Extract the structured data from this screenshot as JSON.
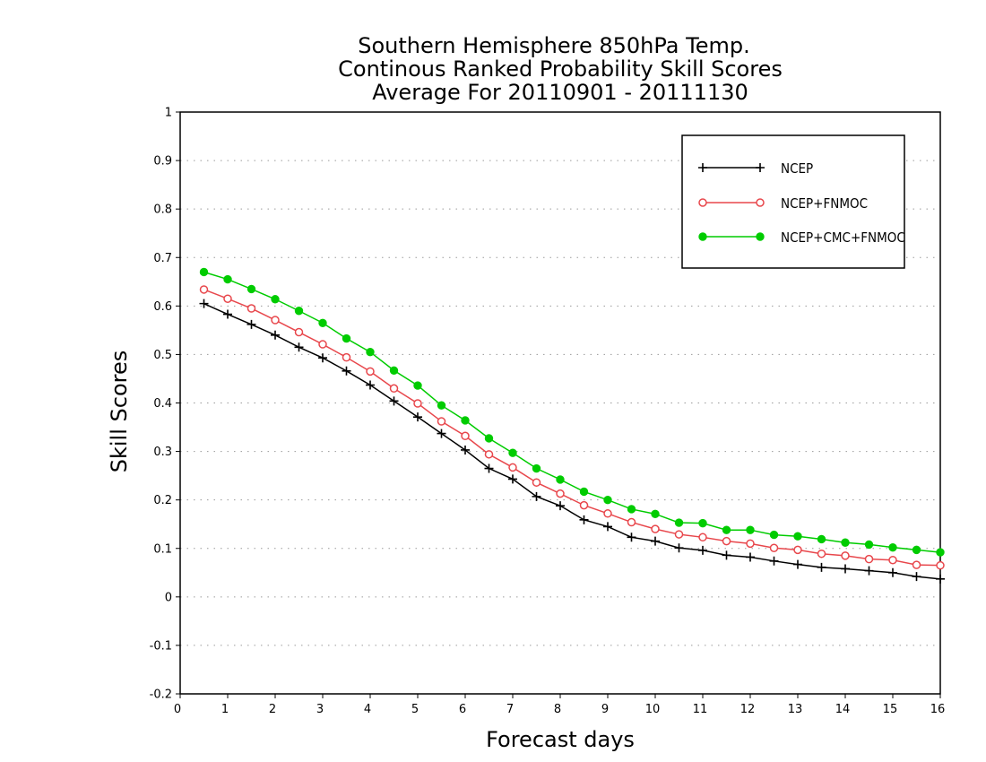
{
  "chart_data": {
    "type": "line",
    "title": [
      "Southern Hemisphere 850hPa Temp.",
      "Continous Ranked Probability Skill Scores",
      "Average For 20110901 - 20111130"
    ],
    "xlabel": "Forecast days",
    "ylabel": "Skill Scores",
    "xlim": [
      0,
      16
    ],
    "ylim": [
      -0.2,
      1
    ],
    "xticks": [
      0,
      1,
      2,
      3,
      4,
      5,
      6,
      7,
      8,
      9,
      10,
      11,
      12,
      13,
      14,
      15,
      16
    ],
    "yticks": [
      -0.2,
      -0.1,
      0,
      0.1,
      0.2,
      0.3,
      0.4,
      0.5,
      0.6,
      0.7,
      0.8,
      0.9,
      1
    ],
    "ytick_labels": [
      "-0.2",
      "-0.1",
      "0",
      "0.1",
      "0.2",
      "0.3",
      "0.4",
      "0.5",
      "0.6",
      "0.7",
      "0.8",
      "0.9",
      "1"
    ],
    "grid": true,
    "legend_position": "top-right",
    "x": [
      0.5,
      1,
      1.5,
      2,
      2.5,
      3,
      3.5,
      4,
      4.5,
      5,
      5.5,
      6,
      6.5,
      7,
      7.5,
      8,
      8.5,
      9,
      9.5,
      10,
      10.5,
      11,
      11.5,
      12,
      12.5,
      13,
      13.5,
      14,
      14.5,
      15,
      15.5,
      16
    ],
    "series": [
      {
        "name": "NCEP",
        "color": "#000000",
        "marker": "plus",
        "values": [
          0.605,
          0.583,
          0.562,
          0.54,
          0.515,
          0.493,
          0.466,
          0.437,
          0.404,
          0.371,
          0.337,
          0.303,
          0.265,
          0.243,
          0.207,
          0.188,
          0.159,
          0.145,
          0.123,
          0.115,
          0.101,
          0.096,
          0.086,
          0.082,
          0.074,
          0.067,
          0.061,
          0.058,
          0.054,
          0.05,
          0.042,
          0.037
        ]
      },
      {
        "name": "NCEP+FNMOC",
        "color": "#e8474c",
        "marker": "open-circle",
        "values": [
          0.634,
          0.615,
          0.595,
          0.571,
          0.546,
          0.521,
          0.494,
          0.465,
          0.43,
          0.399,
          0.362,
          0.332,
          0.294,
          0.267,
          0.236,
          0.213,
          0.189,
          0.172,
          0.154,
          0.14,
          0.129,
          0.123,
          0.115,
          0.11,
          0.101,
          0.097,
          0.089,
          0.085,
          0.078,
          0.076,
          0.066,
          0.065
        ]
      },
      {
        "name": "NCEP+CMC+FNMOC",
        "color": "#00cc00",
        "marker": "filled-circle",
        "values": [
          0.67,
          0.655,
          0.635,
          0.614,
          0.59,
          0.565,
          0.533,
          0.505,
          0.467,
          0.436,
          0.395,
          0.364,
          0.327,
          0.297,
          0.265,
          0.242,
          0.217,
          0.2,
          0.181,
          0.171,
          0.153,
          0.152,
          0.138,
          0.138,
          0.128,
          0.125,
          0.119,
          0.112,
          0.108,
          0.102,
          0.097,
          0.092
        ]
      }
    ]
  }
}
